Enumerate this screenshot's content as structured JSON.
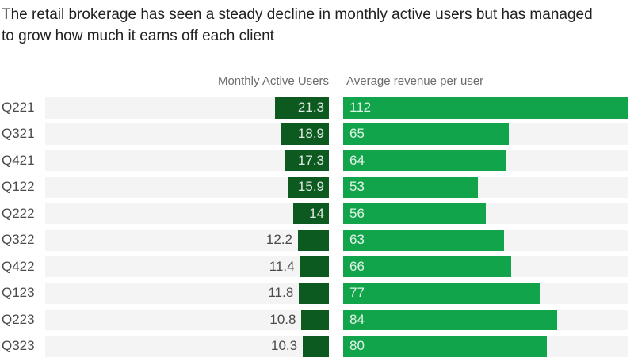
{
  "title": {
    "line1": "The retail brokerage has seen a steady decline in monthly active users but has managed",
    "line2": "to grow how much it earns off each client"
  },
  "columns": {
    "mau_header": "Monthly Active Users",
    "arpu_header": "Average revenue per user"
  },
  "chart_data": {
    "type": "bar",
    "orientation": "horizontal",
    "categories": [
      "Q221",
      "Q321",
      "Q421",
      "Q122",
      "Q222",
      "Q322",
      "Q422",
      "Q123",
      "Q223",
      "Q323"
    ],
    "series": [
      {
        "name": "Monthly Active Users",
        "values": [
          21.3,
          18.9,
          17.3,
          15.9,
          14,
          12.2,
          11.4,
          11.8,
          10.8,
          10.3
        ],
        "labels": [
          "21.3",
          "18.9",
          "17.3",
          "15.9",
          "14",
          "12.2",
          "11.4",
          "11.8",
          "10.8",
          "10.3"
        ],
        "alignment": "right"
      },
      {
        "name": "Average revenue per user",
        "values": [
          112,
          65,
          64,
          53,
          56,
          63,
          66,
          77,
          84,
          80
        ],
        "labels": [
          "112",
          "65",
          "64",
          "53",
          "56",
          "63",
          "66",
          "77",
          "84",
          "80"
        ],
        "alignment": "left"
      }
    ],
    "xlim": [
      0,
      112
    ],
    "grid": false,
    "legend_position": "column headers above chart"
  },
  "colors": {
    "mau_bar": "#0c5a20",
    "arpu_bar": "#11a44a",
    "track": "#f4f4f4",
    "title_text": "#212121",
    "header_text": "#6c6c6c",
    "label_text": "#4b4b4b",
    "bar_label_text": "rgba(255,255,255,0.87)"
  }
}
